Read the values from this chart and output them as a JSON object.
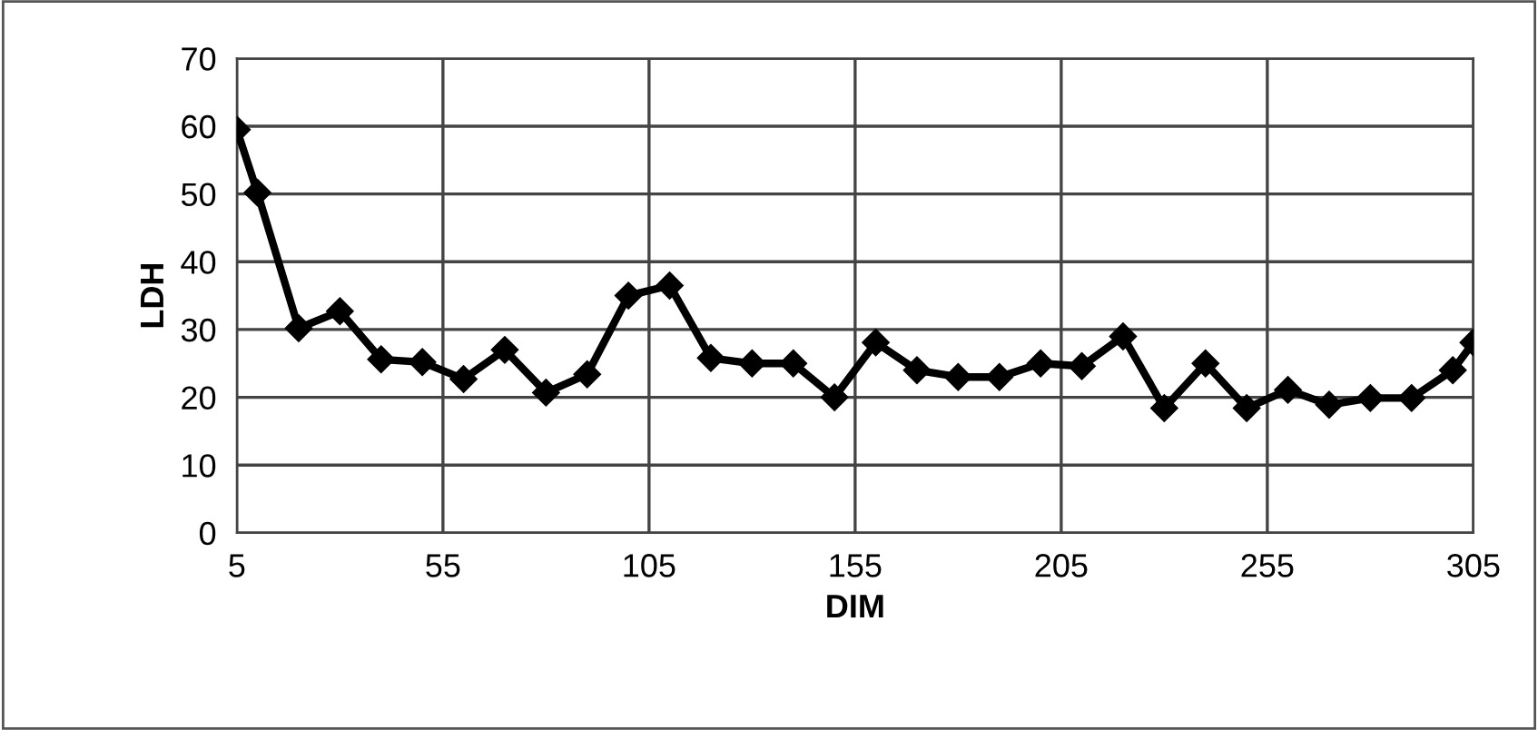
{
  "chart_data": {
    "type": "line",
    "xlabel": "DIM",
    "ylabel": "LDH",
    "x": [
      5,
      10,
      20,
      30,
      40,
      50,
      60,
      70,
      80,
      90,
      100,
      110,
      120,
      130,
      140,
      150,
      160,
      170,
      180,
      190,
      200,
      210,
      220,
      230,
      240,
      250,
      260,
      270,
      280,
      290,
      300,
      305
    ],
    "series": [
      {
        "color": "#000000",
        "values": [
          59.5,
          50.2,
          30.2,
          32.7,
          25.6,
          25.2,
          22.7,
          27,
          20.7,
          23.4,
          35,
          36.5,
          25.8,
          25,
          25,
          20,
          28.1,
          24,
          23,
          23,
          25,
          24.6,
          29,
          18.4,
          25,
          18.4,
          21.1,
          18.9,
          19.9,
          19.9,
          24,
          28.1
        ]
      }
    ],
    "xlim": [
      5,
      305
    ],
    "xticks": [
      5,
      55,
      105,
      155,
      205,
      255,
      305
    ],
    "ylim": [
      0,
      70
    ],
    "yticks": [
      0,
      10,
      20,
      30,
      40,
      50,
      60,
      70
    ],
    "grid": true,
    "legend": false,
    "marker": "diamond",
    "line_style": "solid"
  }
}
